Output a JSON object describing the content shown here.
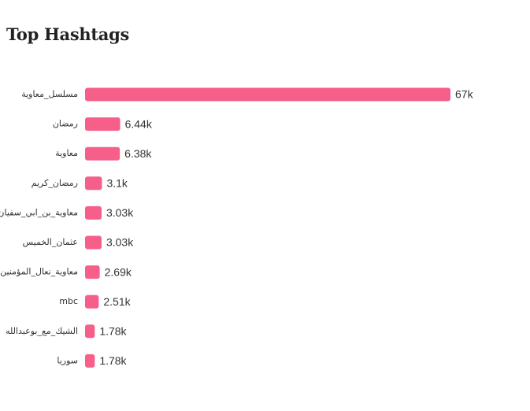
{
  "chart_data": {
    "type": "bar",
    "orientation": "horizontal",
    "title": "Top Hashtags",
    "categories": [
      "مسلسل_معاوية",
      "رمضان",
      "معاوية",
      "رمضان_كريم",
      "معاوية_بن_ابي_سفيان",
      "عثمان_الخميس",
      "معاوية_نعال_المؤمنين",
      "mbc",
      "الشيك_مع_بوعبدالله",
      "سوريا"
    ],
    "values": [
      67000,
      6440,
      6380,
      3100,
      3030,
      3030,
      2690,
      2510,
      1780,
      1780
    ],
    "value_labels": [
      "67k",
      "6.44k",
      "6.38k",
      "3.1k",
      "3.03k",
      "3.03k",
      "2.69k",
      "2.51k",
      "1.78k",
      "1.78k"
    ],
    "xlim": [
      0,
      67000
    ],
    "grid": false,
    "legend": "none",
    "bar_color": "#f65f8a"
  }
}
